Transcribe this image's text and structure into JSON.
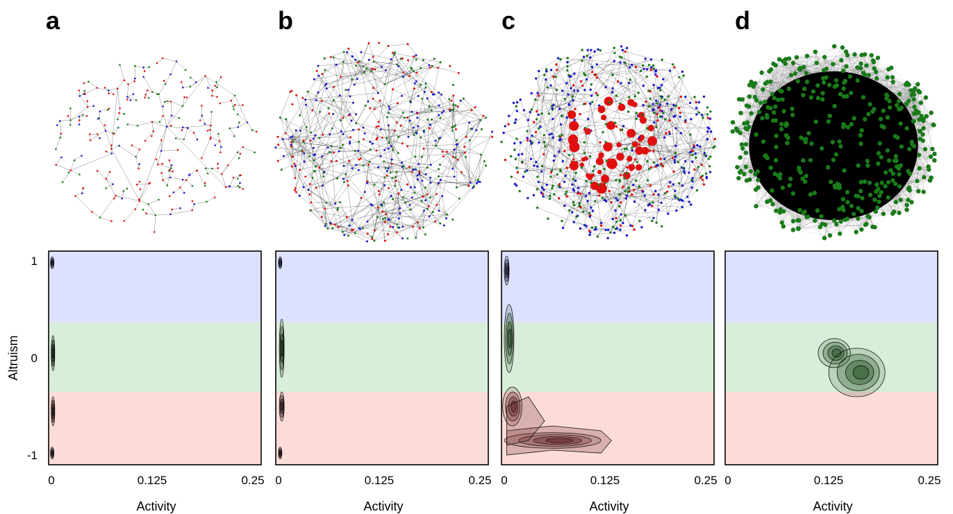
{
  "colors": {
    "cooperator": "#1a1acc",
    "neutral": "#1a7a1a",
    "defector": "#e01010",
    "band_high": "#dde1ff",
    "band_mid": "#d9eeda",
    "band_low": "#fcdcd8"
  },
  "chart_data": [
    {
      "panel": "a",
      "type": "area",
      "network": "sparse-tree",
      "xlabel": "Activity",
      "ylabel": "Altruism",
      "xlim": [
        0,
        0.25
      ],
      "ylim": [
        -1.1,
        1.1
      ],
      "x_ticks": [
        "0",
        "0.125",
        "0.25"
      ],
      "y_ticks": [
        "1",
        "0",
        "-1"
      ],
      "bands": [
        {
          "from": 0.37,
          "to": 1.1,
          "name": "altruist"
        },
        {
          "from": -0.35,
          "to": 0.37,
          "name": "neutral"
        },
        {
          "from": -1.1,
          "to": -0.35,
          "name": "selfish"
        }
      ],
      "density_peaks": [
        {
          "x": 0.001,
          "y": 0.98,
          "spread_x": 0.0015,
          "spread_y": 0.06
        },
        {
          "x": 0.002,
          "y": 0.05,
          "spread_x": 0.002,
          "spread_y": 0.18
        },
        {
          "x": 0.002,
          "y": -0.55,
          "spread_x": 0.002,
          "spread_y": 0.15
        },
        {
          "x": 0.001,
          "y": -0.98,
          "spread_x": 0.0015,
          "spread_y": 0.06
        }
      ]
    },
    {
      "panel": "b",
      "type": "area",
      "network": "sparse-random",
      "xlabel": "Activity",
      "xlim": [
        0,
        0.25
      ],
      "ylim": [
        -1.1,
        1.1
      ],
      "x_ticks": [
        "0",
        "0.125",
        "0.25"
      ],
      "bands": [
        {
          "from": 0.37,
          "to": 1.1,
          "name": "altruist"
        },
        {
          "from": -0.35,
          "to": 0.37,
          "name": "neutral"
        },
        {
          "from": -1.1,
          "to": -0.35,
          "name": "selfish"
        }
      ],
      "density_peaks": [
        {
          "x": 0.002,
          "y": 0.98,
          "spread_x": 0.002,
          "spread_y": 0.06
        },
        {
          "x": 0.004,
          "y": 0.1,
          "spread_x": 0.003,
          "spread_y": 0.3
        },
        {
          "x": 0.004,
          "y": -0.5,
          "spread_x": 0.003,
          "spread_y": 0.15
        },
        {
          "x": 0.002,
          "y": -0.98,
          "spread_x": 0.0015,
          "spread_y": 0.06
        }
      ]
    },
    {
      "panel": "c",
      "type": "area",
      "network": "dense-random",
      "xlabel": "Activity",
      "xlim": [
        0,
        0.25
      ],
      "ylim": [
        -1.1,
        1.1
      ],
      "x_ticks": [
        "0",
        "0.125",
        "0.25"
      ],
      "bands": [
        {
          "from": 0.37,
          "to": 1.1,
          "name": "altruist"
        },
        {
          "from": -0.35,
          "to": 0.37,
          "name": "neutral"
        },
        {
          "from": -1.1,
          "to": -0.35,
          "name": "selfish"
        }
      ],
      "density_peaks": [
        {
          "x": 0.003,
          "y": 0.9,
          "spread_x": 0.003,
          "spread_y": 0.15
        },
        {
          "x": 0.006,
          "y": 0.2,
          "spread_x": 0.006,
          "spread_y": 0.35
        },
        {
          "x": 0.01,
          "y": -0.5,
          "spread_x": 0.012,
          "spread_y": 0.2
        },
        {
          "x": 0.06,
          "y": -0.85,
          "spread_x": 0.06,
          "spread_y": 0.08
        }
      ]
    },
    {
      "panel": "d",
      "type": "area",
      "network": "complete",
      "xlabel": "Activity",
      "xlim": [
        0,
        0.25
      ],
      "ylim": [
        -1.1,
        1.1
      ],
      "x_ticks": [
        "0",
        "0.125",
        "0.25"
      ],
      "bands": [
        {
          "from": 0.37,
          "to": 1.1,
          "name": "altruist"
        },
        {
          "from": -0.35,
          "to": 0.37,
          "name": "neutral"
        },
        {
          "from": -1.1,
          "to": -0.35,
          "name": "selfish"
        }
      ],
      "density_peaks": [
        {
          "x": 0.132,
          "y": 0.05,
          "spread_x": 0.02,
          "spread_y": 0.15
        },
        {
          "x": 0.16,
          "y": -0.15,
          "spread_x": 0.035,
          "spread_y": 0.25
        }
      ]
    }
  ]
}
